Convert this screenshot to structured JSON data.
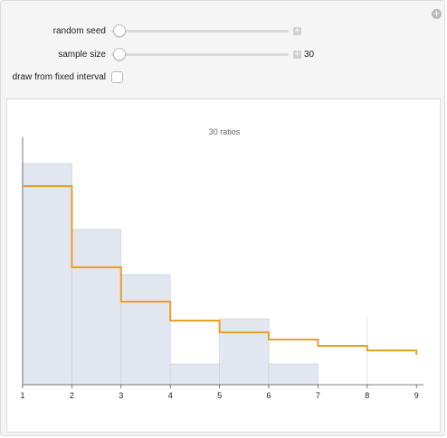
{
  "controls": {
    "random_seed": {
      "label": "random seed"
    },
    "sample_size": {
      "label": "sample size",
      "value": "30"
    },
    "fixed_interval": {
      "label": "draw from fixed interval",
      "checked": false
    },
    "plus_glyph": "+"
  },
  "chart_data": {
    "type": "bar",
    "title": "30 ratios",
    "xlim": [
      1,
      9
    ],
    "x_ticks": [
      "1",
      "2",
      "3",
      "4",
      "5",
      "6",
      "7",
      "8",
      "9"
    ],
    "histogram": {
      "bins": [
        [
          1,
          2
        ],
        [
          2,
          3
        ],
        [
          3,
          4
        ],
        [
          4,
          5
        ],
        [
          5,
          6
        ],
        [
          6,
          7
        ],
        [
          7,
          8
        ],
        [
          8,
          9
        ]
      ],
      "values": [
        0.245,
        0.172,
        0.122,
        0.023,
        0.073,
        0.023,
        0.0,
        0.0
      ]
    },
    "step_curve": {
      "breaks": [
        1,
        2,
        3,
        4,
        5,
        6,
        7,
        8,
        9
      ],
      "values": [
        0.22,
        0.13,
        0.092,
        0.071,
        0.058,
        0.05,
        0.043,
        0.038
      ],
      "end_value": 0.033
    },
    "ylim": [
      0,
      0.29
    ],
    "colors": {
      "histogram_fill": "#e1e6ef",
      "histogram_edge": "#c4cddc",
      "curve": "#e8a025",
      "axis": "#555555"
    }
  }
}
